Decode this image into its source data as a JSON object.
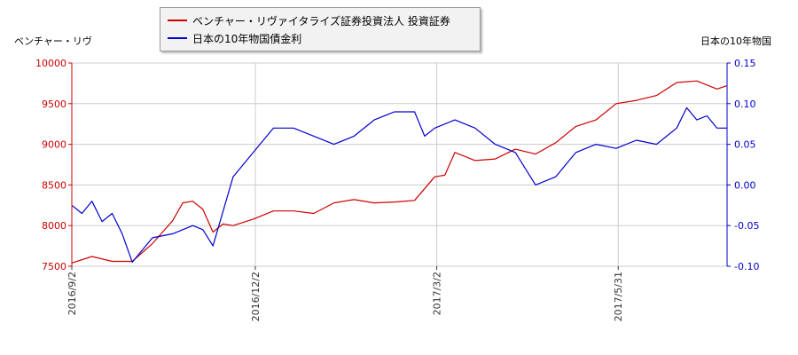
{
  "chart_data": {
    "type": "line",
    "title": "",
    "left_axis_label": "ベンチャー・リヴ",
    "right_axis_label": "日本の10年物国",
    "legend_placement": "top",
    "grid": true,
    "x_ticks": [
      "2016/9/2",
      "2016/12/2",
      "2017/3/2",
      "2017/5/31"
    ],
    "x_tick_positions": [
      0,
      91,
      181,
      271
    ],
    "x_range": [
      0,
      325
    ],
    "y_left": {
      "ylim": [
        7500,
        10000
      ],
      "ticks": [
        7500,
        8000,
        8500,
        9000,
        9500,
        10000
      ]
    },
    "y_right": {
      "ylim": [
        -0.1,
        0.15
      ],
      "ticks": [
        -0.1,
        -0.05,
        0.0,
        0.05,
        0.1,
        0.15
      ],
      "tick_labels": [
        "-0.10",
        "-0.05",
        "0.00",
        "0.05",
        "0.10",
        "0.15"
      ]
    },
    "series": [
      {
        "name": "ベンチャー・リヴァイタライズ証券投資法人 投資証券",
        "axis": "left",
        "color": "#cc0000",
        "x": [
          0,
          10,
          20,
          30,
          40,
          50,
          55,
          60,
          65,
          70,
          75,
          80,
          90,
          100,
          110,
          120,
          130,
          140,
          150,
          160,
          170,
          180,
          185,
          190,
          195,
          200,
          210,
          220,
          230,
          240,
          250,
          260,
          270,
          280,
          290,
          300,
          310,
          320,
          325
        ],
        "values": [
          7540,
          7620,
          7560,
          7560,
          7780,
          8060,
          8280,
          8300,
          8200,
          7920,
          8020,
          8000,
          8080,
          8180,
          8180,
          8150,
          8280,
          8320,
          8280,
          8290,
          8310,
          8600,
          8620,
          8900,
          8850,
          8800,
          8820,
          8940,
          8880,
          9020,
          9220,
          9300,
          9500,
          9540,
          9600,
          9760,
          9780,
          9680,
          9720
        ]
      },
      {
        "name": "日本の10年物国債金利",
        "axis": "right",
        "color": "#0000cc",
        "x": [
          0,
          5,
          10,
          15,
          20,
          25,
          30,
          40,
          50,
          60,
          65,
          70,
          80,
          90,
          100,
          110,
          120,
          130,
          140,
          150,
          160,
          170,
          175,
          180,
          190,
          200,
          210,
          220,
          230,
          240,
          250,
          260,
          270,
          280,
          290,
          300,
          305,
          310,
          315,
          320,
          325
        ],
        "values": [
          -0.025,
          -0.035,
          -0.02,
          -0.045,
          -0.035,
          -0.06,
          -0.095,
          -0.065,
          -0.06,
          -0.05,
          -0.055,
          -0.075,
          0.01,
          0.04,
          0.07,
          0.07,
          0.06,
          0.05,
          0.06,
          0.08,
          0.09,
          0.09,
          0.06,
          0.07,
          0.08,
          0.07,
          0.05,
          0.04,
          0.0,
          0.01,
          0.04,
          0.05,
          0.045,
          0.055,
          0.05,
          0.07,
          0.095,
          0.08,
          0.085,
          0.07,
          0.07
        ]
      }
    ]
  }
}
